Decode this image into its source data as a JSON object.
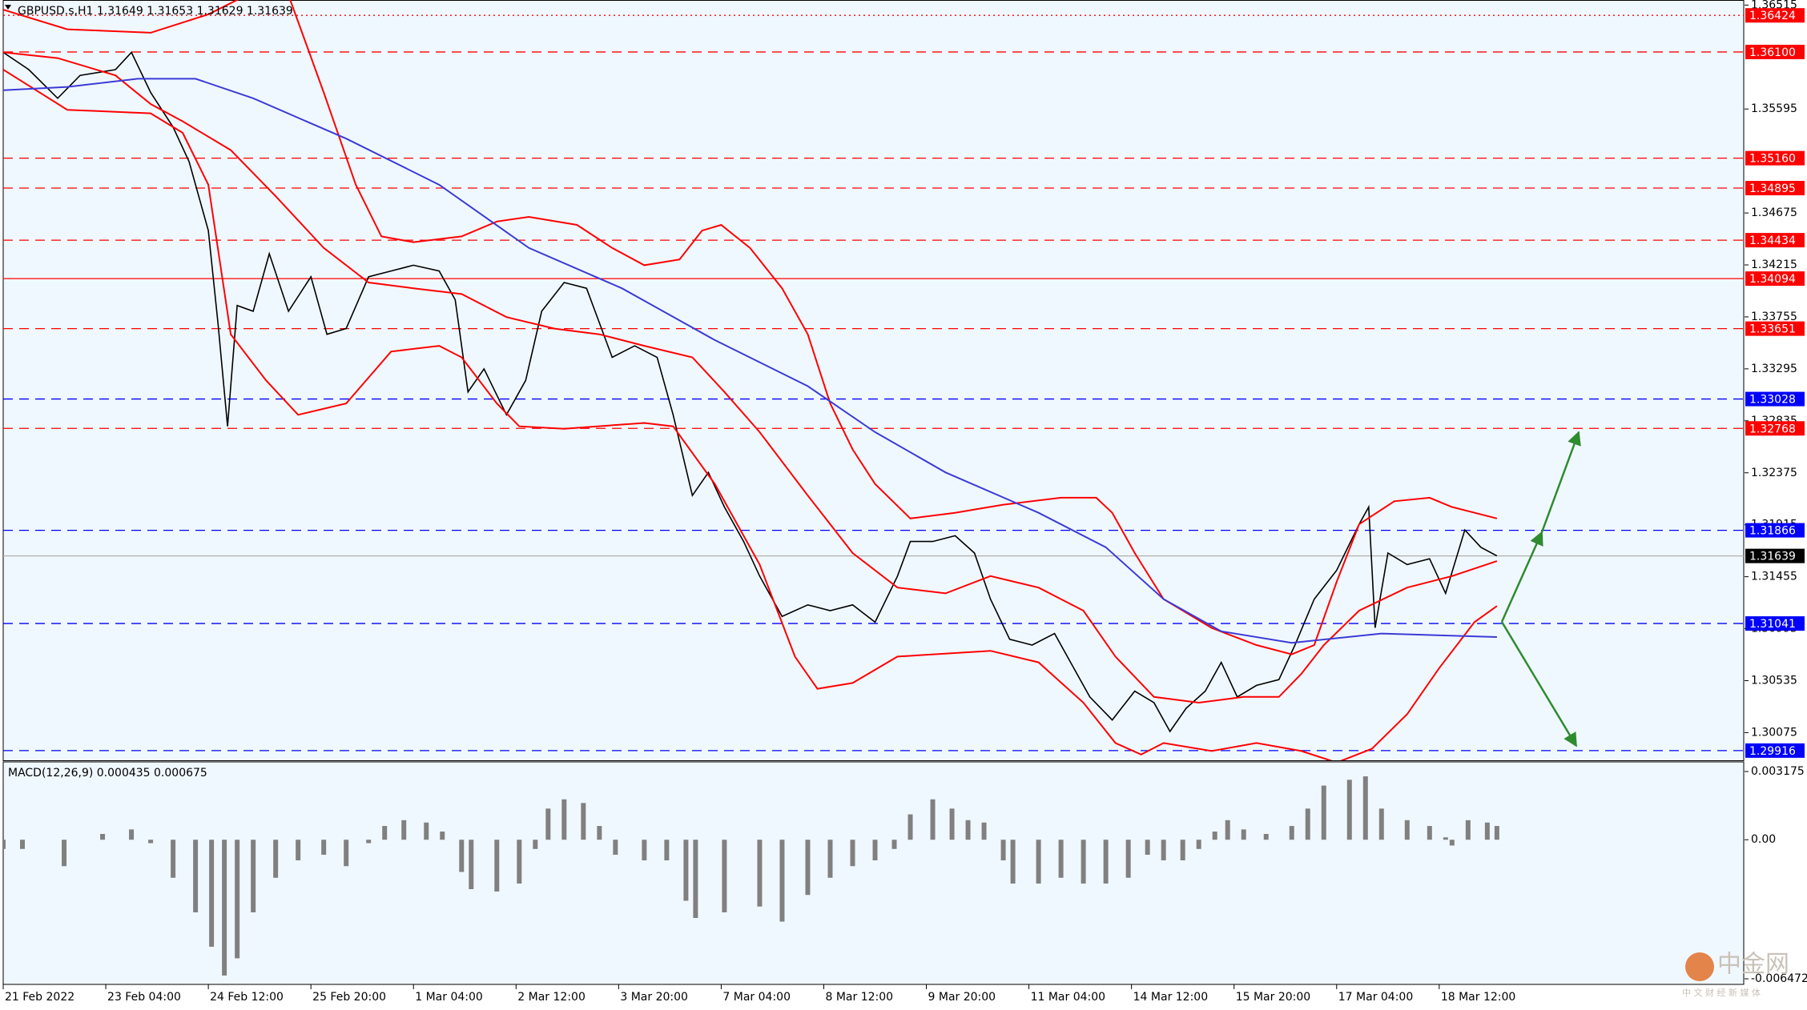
{
  "chart_data": [
    {
      "type": "line",
      "title": "GBPUSD.s,H1  1.31649 1.31653 1.31629 1.31639",
      "xlim": [
        0,
        543
      ],
      "ylim": [
        1.2983,
        1.3656
      ],
      "xticks": [
        {
          "value": 0,
          "label": "21 Feb 2022"
        },
        {
          "value": 32,
          "label": "23 Feb 04:00"
        },
        {
          "value": 64,
          "label": "24 Feb 12:00"
        },
        {
          "value": 96,
          "label": "25 Feb 20:00"
        },
        {
          "value": 128,
          "label": "1 Mar 04:00"
        },
        {
          "value": 160,
          "label": "2 Mar 12:00"
        },
        {
          "value": 192,
          "label": "3 Mar 20:00"
        },
        {
          "value": 224,
          "label": "7 Mar 04:00"
        },
        {
          "value": 256,
          "label": "8 Mar 12:00"
        },
        {
          "value": 288,
          "label": "9 Mar 20:00"
        },
        {
          "value": 320,
          "label": "11 Mar 04:00"
        },
        {
          "value": 352,
          "label": "14 Mar 12:00"
        },
        {
          "value": 384,
          "label": "15 Mar 20:00"
        },
        {
          "value": 416,
          "label": "17 Mar 04:00"
        },
        {
          "value": 448,
          "label": "18 Mar 12:00"
        }
      ],
      "yticks": [
        1.36515,
        1.35595,
        1.34675,
        1.34215,
        1.33755,
        1.33295,
        1.32835,
        1.32375,
        1.31915,
        1.31455,
        1.30995,
        1.30535,
        1.30075
      ],
      "levels": [
        {
          "value": 1.36424,
          "color": "#ff0000",
          "style": "dot"
        },
        {
          "value": 1.361,
          "label": "1.36100",
          "color": "#ff0000",
          "style": "dash"
        },
        {
          "value": 1.3516,
          "label": "1.35160",
          "color": "#ff0000",
          "style": "dash"
        },
        {
          "value": 1.34895,
          "color": "#ff0000",
          "style": "dash"
        },
        {
          "value": 1.34434,
          "color": "#ff0000",
          "style": "dash"
        },
        {
          "value": 1.34094,
          "color": "#ff0000",
          "style": "solid"
        },
        {
          "value": 1.33651,
          "color": "#ff0000",
          "style": "dash"
        },
        {
          "value": 1.33028,
          "color": "#0000ff",
          "style": "dash"
        },
        {
          "value": 1.32768,
          "color": "#ff0000",
          "style": "dash"
        },
        {
          "value": 1.31866,
          "color": "#0000ff",
          "style": "dash"
        },
        {
          "value": 1.31639,
          "color": "#000000",
          "style": "solid"
        },
        {
          "value": 1.31041,
          "color": "#0000ff",
          "style": "dash"
        },
        {
          "value": 1.29916,
          "color": "#0000ff",
          "style": "dash"
        }
      ],
      "series": [
        {
          "color": "#000000",
          "x": [
            0,
            8,
            17,
            24,
            35,
            40,
            46,
            53,
            58,
            64,
            67,
            70,
            73,
            78,
            83,
            89,
            96,
            101,
            107,
            114,
            121,
            128,
            136,
            141,
            145,
            150,
            157,
            163,
            168,
            175,
            182,
            190,
            197,
            204,
            209,
            215,
            220,
            225,
            231,
            236,
            243,
            251,
            258,
            265,
            272,
            279,
            283,
            290,
            297,
            303,
            308,
            314,
            321,
            328,
            333,
            339,
            346,
            353,
            359,
            364,
            369,
            375,
            380,
            385,
            391,
            398,
            403,
            409,
            416,
            423,
            426,
            428,
            432,
            438,
            445,
            450,
            456,
            461,
            466
          ],
          "values": [
            1.36097,
            1.35944,
            1.3569,
            1.35893,
            1.35944,
            1.36097,
            1.35741,
            1.35435,
            1.35129,
            1.34518,
            1.33703,
            1.32786,
            1.33856,
            1.33805,
            1.34314,
            1.33805,
            1.3411,
            1.33601,
            1.33652,
            1.3411,
            1.34161,
            1.34212,
            1.34161,
            1.33907,
            1.33091,
            1.33295,
            1.32888,
            1.33193,
            1.33805,
            1.34059,
            1.34008,
            1.33397,
            1.33499,
            1.33397,
            1.32888,
            1.32174,
            1.32378,
            1.32072,
            1.31767,
            1.31461,
            1.31104,
            1.31206,
            1.31155,
            1.31206,
            1.31053,
            1.31461,
            1.31767,
            1.31767,
            1.31818,
            1.31665,
            1.31257,
            1.30901,
            1.3085,
            1.30952,
            1.30697,
            1.30391,
            1.30187,
            1.30442,
            1.3034,
            1.30085,
            1.30289,
            1.30442,
            1.30697,
            1.30391,
            1.30493,
            1.30544,
            1.3085,
            1.31257,
            1.31512,
            1.31919,
            1.32072,
            1.31003,
            1.31665,
            1.31563,
            1.31614,
            1.31308,
            1.31869,
            1.31716,
            1.31639
          ]
        },
        {
          "color": "#ff0000",
          "x": [
            0,
            20,
            46,
            64,
            87,
            100,
            110,
            118,
            128,
            143,
            154,
            164,
            179,
            190,
            200,
            211,
            218,
            224,
            233,
            243,
            251,
            258,
            265,
            272,
            283,
            297,
            312,
            330,
            341,
            346,
            353,
            362,
            377,
            391,
            402,
            409,
            416,
            423,
            434,
            445,
            452,
            466
          ],
          "values": [
            1.36474,
            1.36301,
            1.3627,
            1.36433,
            1.36759,
            1.35741,
            1.34925,
            1.34467,
            1.34416,
            1.34467,
            1.34599,
            1.3464,
            1.34569,
            1.34365,
            1.34212,
            1.34263,
            1.34518,
            1.34569,
            1.34365,
            1.34008,
            1.33601,
            1.32989,
            1.32582,
            1.32276,
            1.31971,
            1.32021,
            1.32093,
            1.32154,
            1.32154,
            1.32021,
            1.31665,
            1.31257,
            1.31002,
            1.3085,
            1.30768,
            1.3085,
            1.3141,
            1.31919,
            1.32123,
            1.32154,
            1.32072,
            1.31971
          ]
        },
        {
          "color": "#ff0000",
          "x": [
            0,
            17,
            35,
            46,
            56,
            71,
            85,
            100,
            114,
            128,
            143,
            157,
            172,
            186,
            200,
            215,
            225,
            236,
            251,
            265,
            279,
            294,
            308,
            323,
            337,
            347,
            359,
            373,
            387,
            398,
            405,
            412,
            423,
            438,
            452,
            466
          ],
          "values": [
            1.36097,
            1.36046,
            1.35893,
            1.35639,
            1.35486,
            1.35231,
            1.34823,
            1.34365,
            1.34059,
            1.34008,
            1.33957,
            1.33753,
            1.33651,
            1.33601,
            1.33499,
            1.33397,
            1.33091,
            1.32735,
            1.32174,
            1.31665,
            1.31359,
            1.31308,
            1.31461,
            1.31359,
            1.31155,
            1.30748,
            1.30391,
            1.3034,
            1.30391,
            1.30391,
            1.30595,
            1.3085,
            1.31155,
            1.31359,
            1.31461,
            1.31593
          ]
        },
        {
          "color": "#ff0000",
          "x": [
            0,
            20,
            46,
            56,
            64,
            71,
            82,
            92,
            107,
            121,
            136,
            143,
            154,
            161,
            175,
            200,
            209,
            222,
            236,
            247,
            254,
            265,
            279,
            308,
            323,
            337,
            347,
            355,
            362,
            377,
            391,
            405,
            416,
            427,
            438,
            448,
            459,
            466
          ],
          "values": [
            1.35944,
            1.35588,
            1.35557,
            1.35384,
            1.34925,
            1.33601,
            1.33193,
            1.32888,
            1.32989,
            1.33448,
            1.33499,
            1.33397,
            1.32989,
            1.32786,
            1.32765,
            1.32816,
            1.32786,
            1.32276,
            1.31563,
            1.30748,
            1.30463,
            1.30514,
            1.30748,
            1.30799,
            1.30697,
            1.3034,
            1.29983,
            1.29881,
            1.29983,
            1.29912,
            1.29983,
            1.29912,
            1.2981,
            1.29932,
            1.30238,
            1.30646,
            1.31053,
            1.31196
          ]
        },
        {
          "color": "#3b3bd6",
          "x": [
            0,
            20,
            42,
            60,
            78,
            107,
            136,
            164,
            193,
            222,
            251,
            272,
            294,
            323,
            344,
            362,
            380,
            402,
            430,
            466
          ],
          "values": [
            1.35761,
            1.35791,
            1.35863,
            1.35863,
            1.3569,
            1.35333,
            1.34925,
            1.34365,
            1.34008,
            1.3355,
            1.33142,
            1.32735,
            1.32378,
            1.32021,
            1.31716,
            1.31257,
            1.30972,
            1.3087,
            1.30952,
            1.30921
          ]
        }
      ]
    },
    {
      "type": "bar",
      "title": "MACD(12,26,9) 0.000435 0.000675",
      "color": "#808080",
      "ylim": [
        -0.006472,
        0.003175
      ],
      "yticks": [
        0.003175,
        {
          "value": 0,
          "label": "0.00"
        },
        -0.006472
      ],
      "x": [
        0,
        6,
        19,
        31,
        40,
        46,
        53,
        60,
        65,
        69,
        73,
        78,
        85,
        92,
        100,
        107,
        114,
        119,
        125,
        132,
        137,
        143,
        146,
        154,
        161,
        166,
        170,
        175,
        181,
        186,
        191,
        200,
        207,
        213,
        216,
        225,
        236,
        243,
        251,
        258,
        265,
        272,
        278,
        283,
        290,
        296,
        301,
        306,
        312,
        315,
        323,
        330,
        337,
        344,
        351,
        357,
        362,
        368,
        373,
        378,
        382,
        387,
        394,
        402,
        407,
        412,
        420,
        425,
        430,
        438,
        445,
        450,
        452,
        457,
        463,
        466
      ],
      "values": [
        -0.00043,
        -0.00043,
        -0.00123,
        0.00027,
        0.00048,
        -0.00016,
        -0.00177,
        -0.00338,
        -0.00498,
        -0.00632,
        -0.00552,
        -0.00338,
        -0.00177,
        -0.00096,
        -0.0007,
        -0.00123,
        -0.00016,
        0.00064,
        0.00091,
        0.0008,
        0.00038,
        -0.0015,
        -0.0023,
        -0.00241,
        -0.00204,
        -0.00043,
        0.00145,
        0.00188,
        0.00171,
        0.00064,
        -0.0007,
        -0.00096,
        -0.00096,
        -0.00284,
        -0.00364,
        -0.00338,
        -0.00311,
        -0.00381,
        -0.00257,
        -0.00177,
        -0.00123,
        -0.00096,
        -0.00043,
        0.00118,
        0.00188,
        0.00145,
        0.00091,
        0.0008,
        -0.00096,
        -0.00204,
        -0.00204,
        -0.00177,
        -0.00204,
        -0.00204,
        -0.00177,
        -0.0007,
        -0.00096,
        -0.00096,
        -0.00043,
        0.00038,
        0.00091,
        0.00048,
        0.00027,
        0.00064,
        0.00145,
        0.00252,
        0.00279,
        0.00295,
        0.00145,
        0.00091,
        0.00064,
        0.00011,
        -0.00027,
        0.00091,
        0.0008,
        0.00064
      ]
    }
  ],
  "watermark": {
    "name": "中金网",
    "tagline": "中 文 财 经 新 媒 体"
  }
}
